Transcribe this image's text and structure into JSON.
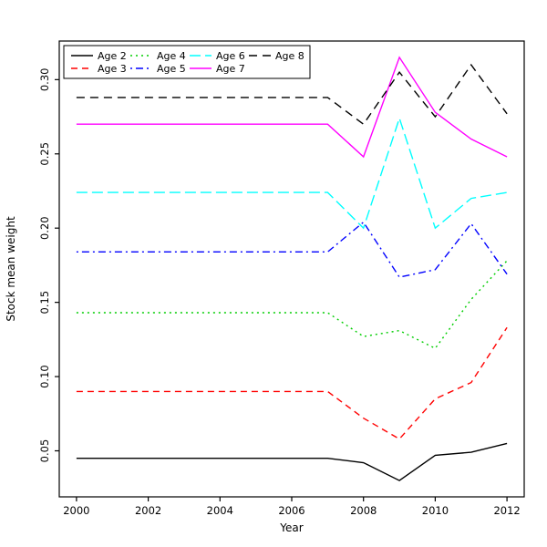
{
  "chart_data": {
    "type": "line",
    "title": "",
    "xlabel": "Year",
    "ylabel": "Stock mean weight",
    "x": [
      2000,
      2001,
      2002,
      2003,
      2004,
      2005,
      2006,
      2007,
      2008,
      2009,
      2010,
      2011,
      2012
    ],
    "xlim": [
      1999.52,
      2012.48
    ],
    "ylim": [
      0.019,
      0.326
    ],
    "xticks": [
      2000,
      2002,
      2004,
      2006,
      2008,
      2010,
      2012
    ],
    "xtick_labels": [
      "2000",
      "2002",
      "2004",
      "2006",
      "2008",
      "2010",
      "2012"
    ],
    "yticks": [
      0.05,
      0.1,
      0.15,
      0.2,
      0.25,
      0.3
    ],
    "ytick_labels": [
      "0.05",
      "0.10",
      "0.15",
      "0.20",
      "0.25",
      "0.30"
    ],
    "grid": false,
    "legend_position": "top-left",
    "legend_ncol": 4,
    "series": [
      {
        "name": "Age 2",
        "color": "#000000",
        "dash": "",
        "values": [
          0.045,
          0.045,
          0.045,
          0.045,
          0.045,
          0.045,
          0.045,
          0.045,
          0.042,
          0.03,
          0.047,
          0.049,
          0.055
        ]
      },
      {
        "name": "Age 3",
        "color": "#ff0000",
        "dash": "7,5",
        "values": [
          0.09,
          0.09,
          0.09,
          0.09,
          0.09,
          0.09,
          0.09,
          0.09,
          0.072,
          0.058,
          0.085,
          0.096,
          0.133
        ]
      },
      {
        "name": "Age 4",
        "color": "#00cd00",
        "dash": "2,4",
        "values": [
          0.143,
          0.143,
          0.143,
          0.143,
          0.143,
          0.143,
          0.143,
          0.143,
          0.127,
          0.131,
          0.119,
          0.152,
          0.178
        ]
      },
      {
        "name": "Age 5",
        "color": "#0000ff",
        "dash": "2,4,8,4",
        "values": [
          0.184,
          0.184,
          0.184,
          0.184,
          0.184,
          0.184,
          0.184,
          0.184,
          0.204,
          0.167,
          0.172,
          0.203,
          0.169
        ]
      },
      {
        "name": "Age 6",
        "color": "#00ffff",
        "dash": "12,5",
        "values": [
          0.224,
          0.224,
          0.224,
          0.224,
          0.224,
          0.224,
          0.224,
          0.224,
          0.2,
          0.274,
          0.2,
          0.22,
          0.224
        ]
      },
      {
        "name": "Age 7",
        "color": "#ff00ff",
        "dash": "",
        "values": [
          0.27,
          0.27,
          0.27,
          0.27,
          0.27,
          0.27,
          0.27,
          0.27,
          0.248,
          0.315,
          0.278,
          0.26,
          0.248
        ]
      },
      {
        "name": "Age 8",
        "color": "#000000",
        "dash": "9,6",
        "values": [
          0.288,
          0.288,
          0.288,
          0.288,
          0.288,
          0.288,
          0.288,
          0.288,
          0.27,
          0.305,
          0.275,
          0.31,
          0.277
        ]
      }
    ]
  }
}
